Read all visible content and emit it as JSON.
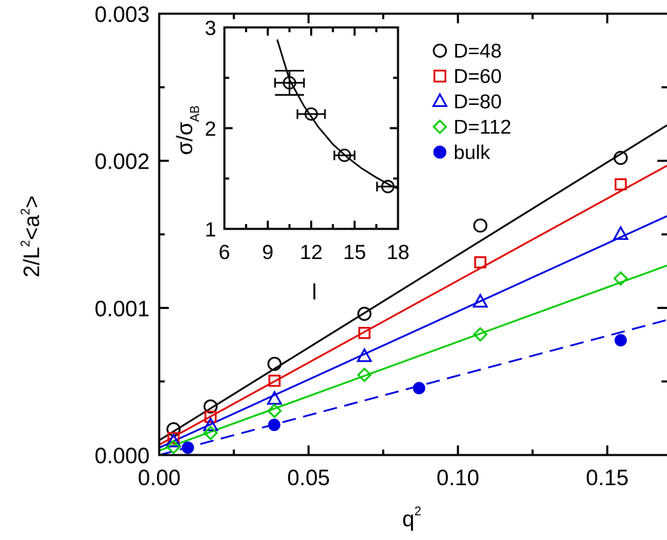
{
  "chart_data": [
    {
      "type": "scatter",
      "title": "",
      "xlabel": "q",
      "xlabel_sup": "2",
      "ylabel_parts": [
        "2/L",
        "2",
        "<a",
        "2",
        ">"
      ],
      "xlim": [
        0,
        0.17
      ],
      "ylim": [
        0,
        0.003
      ],
      "xticks": [
        0.0,
        0.05,
        0.1,
        0.15
      ],
      "xtick_labels": [
        "0.00",
        "0.05",
        "0.10",
        "0.15"
      ],
      "yticks": [
        0,
        0.001,
        0.002,
        0.003
      ],
      "ytick_labels": [
        "0.000",
        "0.001",
        "0.002",
        "0.003"
      ],
      "legend_position": "top-right",
      "series": [
        {
          "name": "D=48",
          "color": "#000000",
          "marker": "circle",
          "x": [
            0.0048,
            0.0172,
            0.0386,
            0.0687,
            0.1075,
            0.1545
          ],
          "y": [
            0.000175,
            0.00033,
            0.00062,
            0.00096,
            0.00156,
            0.00202
          ],
          "fit": {
            "intercept": 0.0001,
            "slope": 0.0126,
            "dashed": false
          }
        },
        {
          "name": "D=60",
          "color": "#e00000",
          "marker": "square",
          "x": [
            0.0048,
            0.0172,
            0.0386,
            0.0687,
            0.1075,
            0.1545
          ],
          "y": [
            0.000115,
            0.00026,
            0.000505,
            0.00083,
            0.00131,
            0.00184
          ],
          "fit": {
            "intercept": 7e-05,
            "slope": 0.01116,
            "dashed": false
          }
        },
        {
          "name": "D=80",
          "color": "#0000e0",
          "marker": "triangle",
          "x": [
            0.0048,
            0.0172,
            0.0386,
            0.0687,
            0.1075,
            0.1545
          ],
          "y": [
            9e-05,
            0.0002,
            0.00038,
            0.00067,
            0.00104,
            0.0015
          ],
          "fit": {
            "intercept": 5e-05,
            "slope": 0.00926,
            "dashed": false
          }
        },
        {
          "name": "D=112",
          "color": "#00cc00",
          "marker": "diamond",
          "x": [
            0.0048,
            0.0172,
            0.0386,
            0.0687,
            0.1075,
            0.1545
          ],
          "y": [
            5.5e-05,
            0.00015,
            0.0003,
            0.000545,
            0.00082,
            0.0012
          ],
          "fit": {
            "intercept": 3e-05,
            "slope": 0.0074,
            "dashed": false
          }
        },
        {
          "name": "bulk",
          "color": "#0000e0",
          "marker": "filled-circle",
          "x": [
            0.0096,
            0.0385,
            0.087,
            0.1545
          ],
          "y": [
            5e-05,
            0.000205,
            0.000455,
            0.00078
          ],
          "fit": {
            "intercept": 0.0,
            "slope": 0.0054,
            "dashed": true
          }
        }
      ]
    },
    {
      "type": "scatter",
      "title": "",
      "xlabel": "l",
      "ylabel": "σ/σ",
      "ylabel_sub": "AB",
      "xlim": [
        6,
        18
      ],
      "ylim": [
        1,
        3
      ],
      "xticks": [
        6,
        9,
        12,
        15,
        18
      ],
      "xtick_labels": [
        "6",
        "9",
        "12",
        "15",
        "18"
      ],
      "yticks": [
        1,
        2,
        3
      ],
      "ytick_labels": [
        "1",
        "2",
        "3"
      ],
      "series": [
        {
          "name": "",
          "color": "#000000",
          "marker": "circle",
          "x": [
            10.5,
            12.0,
            14.3,
            17.3
          ],
          "y": [
            2.45,
            2.14,
            1.73,
            1.42
          ],
          "xerr": [
            1.0,
            0.95,
            0.7,
            0.75
          ],
          "yerr": [
            0.12,
            0.0,
            0.0,
            0.0
          ],
          "curve": {
            "x": [
              9.65,
              10.5,
              11.5,
              12.5,
              13.5,
              14.5,
              15.5,
              16.5,
              17.5,
              18.0
            ],
            "y": [
              2.88,
              2.48,
              2.22,
              2.01,
              1.84,
              1.71,
              1.6,
              1.51,
              1.43,
              1.4
            ]
          }
        }
      ]
    }
  ]
}
